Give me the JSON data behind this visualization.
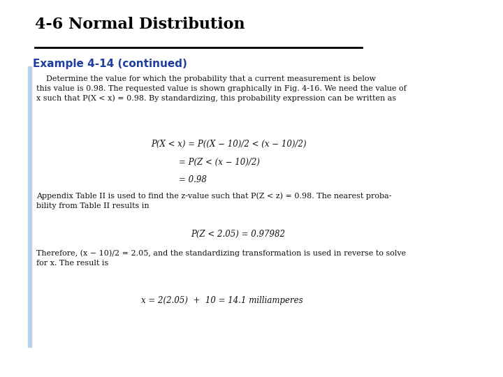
{
  "title": "4-6 Normal Distribution",
  "subtitle": "Example 4-14 (continued)",
  "title_color": "#000000",
  "subtitle_color": "#1e3fa0",
  "bg_color": "#ffffff",
  "left_bar_color": "#b8d0e8",
  "body_text1": "    Determine the value for which the probability that a current measurement is below\nthis value is 0.98. The requested value is shown graphically in Fig. 4-16. We need the value of\nx such that P(X < x) = 0.98. By standardizing, this probability expression can be written as",
  "eq1_line1": "P(X < x) = P((X − 10)/2 < (x − 10)/2)",
  "eq1_line2": "= P(Z < (x − 10)/2)",
  "eq1_line3": "= 0.98",
  "para2": "Appendix Table II is used to find the z-value such that P(Z < z) = 0.98. The nearest proba-\nbility from Table II results in",
  "eq2": "P(Z < 2.05) = 0.97982",
  "para3": "Therefore, (x − 10)/2 = 2.05, and the standardizing transformation is used in reverse to solve\nfor x. The result is",
  "eq3": "x = 2(2.05)  +  10 = 14.1 milliamperes",
  "title_fontsize": 16,
  "subtitle_fontsize": 11,
  "body_fontsize": 8,
  "eq_fontsize": 8.5
}
